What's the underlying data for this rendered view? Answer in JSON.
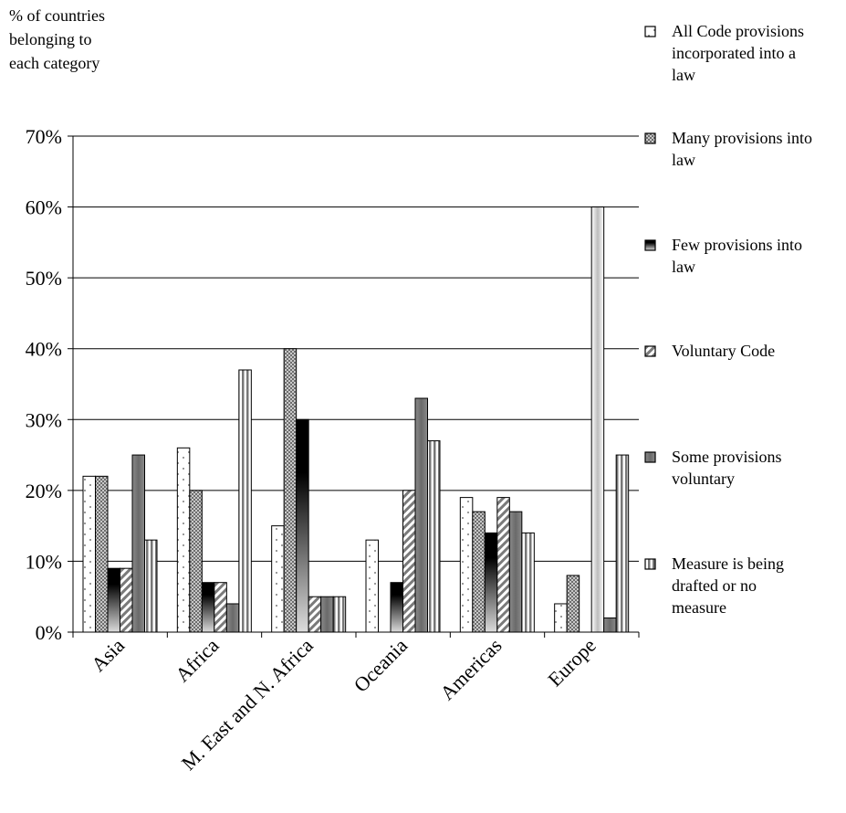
{
  "chart_data": {
    "type": "bar",
    "ylabel": "% of countries belonging to each category",
    "ylabel_lines": [
      "% of countries",
      "belonging to",
      "each category"
    ],
    "ylim": [
      0,
      70
    ],
    "yticks": [
      "0%",
      "10%",
      "20%",
      "30%",
      "40%",
      "50%",
      "60%",
      "70%"
    ],
    "grid": true,
    "legend_position": "right",
    "categories": [
      "Asia",
      "Africa",
      "M. East and N. Africa",
      "Oceania",
      "Americas",
      "Europe"
    ],
    "series": [
      {
        "name": "All Code provisions incorporated into a law",
        "legend_lines": [
          "All Code provisions",
          "incorporated into a",
          "law"
        ],
        "values": [
          22,
          26,
          15,
          13,
          19,
          4
        ]
      },
      {
        "name": "Many provisions into law",
        "legend_lines": [
          "Many provisions into",
          "law"
        ],
        "values": [
          22,
          20,
          40,
          0,
          17,
          8
        ]
      },
      {
        "name": "Few provisions into law",
        "legend_lines": [
          "Few provisions into",
          "law"
        ],
        "values": [
          9,
          7,
          30,
          7,
          14,
          0
        ]
      },
      {
        "name": "Voluntary Code",
        "legend_lines": [
          "Voluntary Code"
        ],
        "values": [
          9,
          7,
          5,
          20,
          19,
          60
        ]
      },
      {
        "name": "Some provisions voluntary",
        "legend_lines": [
          "Some provisions",
          "voluntary"
        ],
        "values": [
          25,
          4,
          5,
          33,
          17,
          2
        ]
      },
      {
        "name": "Measure is being drafted or no measure",
        "legend_lines": [
          "Measure is being",
          "drafted or no",
          "measure"
        ],
        "values": [
          13,
          37,
          5,
          27,
          14,
          25
        ]
      }
    ]
  }
}
